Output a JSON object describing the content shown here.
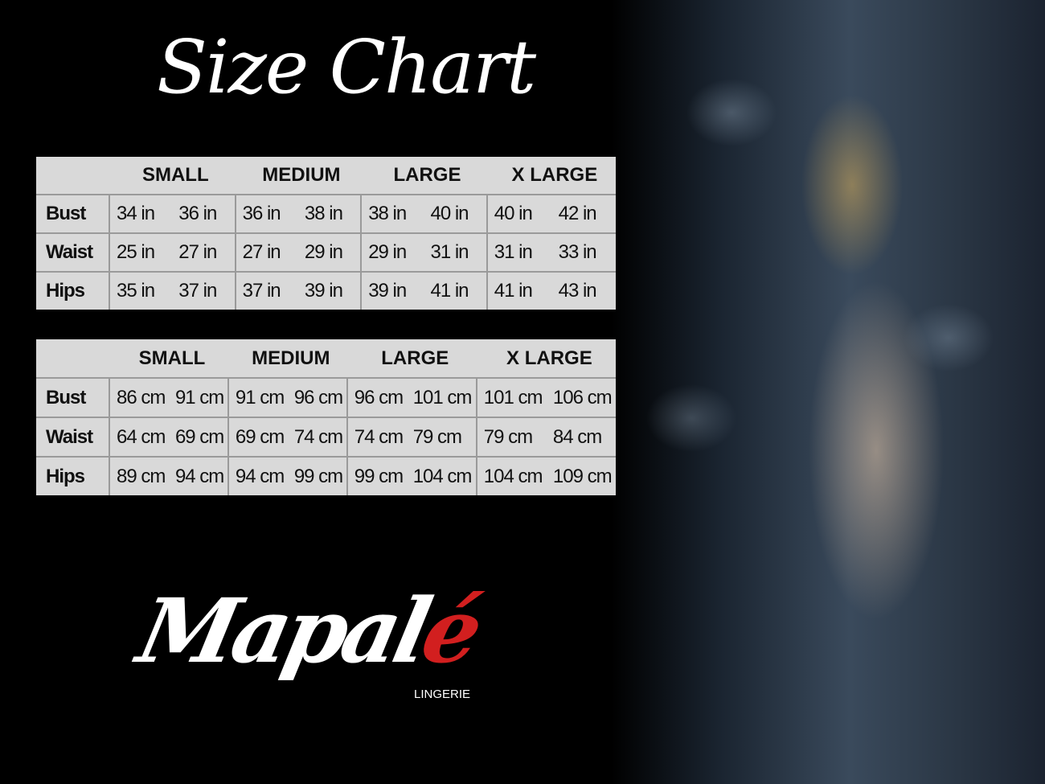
{
  "title": "Size Chart",
  "sizes": [
    "SMALL",
    "MEDIUM",
    "LARGE",
    "X LARGE"
  ],
  "inches": {
    "rows": [
      {
        "label": "Bust",
        "values": [
          "34 in",
          "36 in",
          "36 in",
          "38 in",
          "38 in",
          "40 in",
          "40 in",
          "42 in"
        ]
      },
      {
        "label": "Waist",
        "values": [
          "25 in",
          "27 in",
          "27 in",
          "29 in",
          "29 in",
          "31 in",
          "31 in",
          "33 in"
        ]
      },
      {
        "label": "Hips",
        "values": [
          "35 in",
          "37 in",
          "37 in",
          "39 in",
          "39 in",
          "41 in",
          "41 in",
          "43 in"
        ]
      }
    ]
  },
  "centimeters": {
    "rows": [
      {
        "label": "Bust",
        "values": [
          "86 cm",
          "91 cm",
          "91 cm",
          "96 cm",
          "96 cm",
          "101 cm",
          "101 cm",
          "106 cm"
        ]
      },
      {
        "label": "Waist",
        "values": [
          "64 cm",
          "69 cm",
          "69 cm",
          "74 cm",
          "74 cm",
          "79  cm",
          "79 cm",
          "84 cm"
        ]
      },
      {
        "label": "Hips",
        "values": [
          "89 cm",
          "94 cm",
          "94 cm",
          "99 cm",
          "99 cm",
          "104 cm",
          "104 cm",
          "109 cm"
        ]
      }
    ]
  },
  "brand": {
    "name_main": "Mapal",
    "name_accent": "é",
    "subtitle": "LINGERIE",
    "accent_color": "#d21f1f"
  }
}
